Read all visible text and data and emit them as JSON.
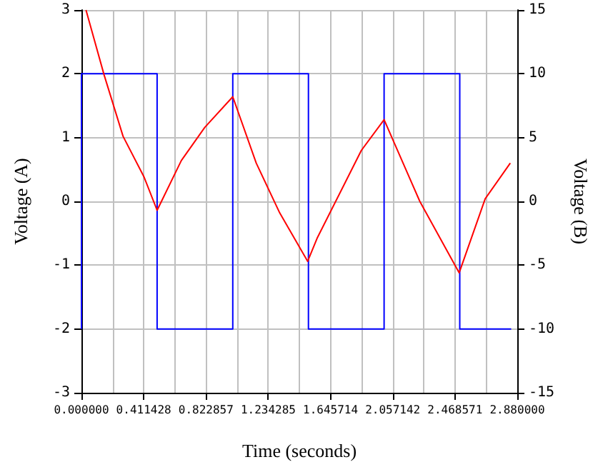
{
  "chart_data": {
    "type": "line",
    "xlabel": "Time (seconds)",
    "ylabel": "Voltage (A)",
    "y2label": "Voltage (B)",
    "xlim": [
      0,
      2.88
    ],
    "xticks": [
      {
        "value": 0,
        "label": "0.000000"
      },
      0.411428,
      0.822857,
      1.234285,
      1.645714,
      2.057142,
      2.468571,
      {
        "value": 2.88,
        "label": "2.880000"
      }
    ],
    "ylim": [
      -3,
      3
    ],
    "yticks": [
      -3,
      -2,
      -1,
      0,
      1,
      2,
      3
    ],
    "y2lim": [
      -15,
      15
    ],
    "y2ticks": [
      -15,
      -10,
      -5,
      0,
      5,
      10,
      15
    ],
    "grid": true,
    "marker": "none",
    "line_style": "solid",
    "series": [
      {
        "type": "step",
        "color": "#0000ff",
        "x": [
          0,
          0,
          0.5,
          1.0,
          1.5,
          2.0,
          2.5,
          2.84
        ],
        "values": [
          -2,
          2,
          -2,
          2,
          -2,
          2,
          -2,
          -2
        ]
      },
      {
        "type": "line",
        "axis": "y2",
        "color": "#ff0000",
        "x": [
          0.03,
          0.15,
          0.275,
          0.414,
          0.5,
          0.66,
          0.815,
          1.0,
          1.155,
          1.31,
          1.495,
          1.557,
          1.85,
          2.0,
          2.236,
          2.496,
          2.668,
          2.834
        ],
        "values": [
          15,
          9.9,
          5.1,
          1.9,
          -0.7,
          3.2,
          5.8,
          8.2,
          3.0,
          -0.9,
          -4.7,
          -2.9,
          4.0,
          6.4,
          0,
          -5.6,
          0.2,
          3.0
        ]
      }
    ]
  }
}
